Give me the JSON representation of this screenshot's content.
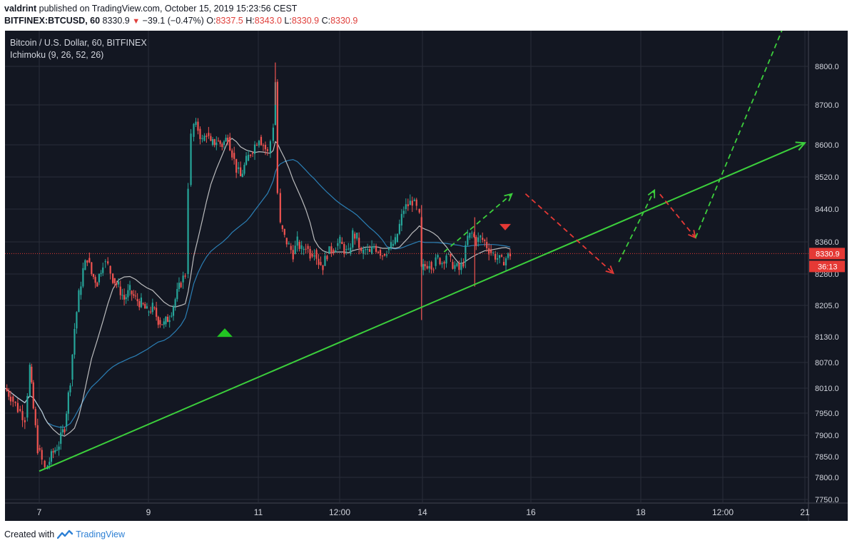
{
  "header": {
    "user": "valdrint",
    "published_text": " published on TradingView.com, October 15, 2019 15:23:56 CEST",
    "symbol": "BITFINEX:BTCUSD, 60",
    "last": "8330.9",
    "change": "−39.1 (−0.47%)",
    "open_label": "O:",
    "open": "8337.5",
    "high_label": "H:",
    "high": "8343.0",
    "low_label": "L:",
    "low": "8330.9",
    "close_label": "C:",
    "close": "8330.9"
  },
  "legend": {
    "title": "Bitcoin / U.S. Dollar, 60, BITFINEX",
    "indicator": "Ichimoku (9, 26, 52, 26)"
  },
  "footer": {
    "created_with": "Created with",
    "brand": "TradingView"
  },
  "colors": {
    "background": "#131722",
    "grid": "#2a2e39",
    "up": "#26a69a",
    "down": "#ef5350",
    "trendline": "#3ccf3c",
    "projection_up": "#3ccf3c",
    "projection_down": "#e53935",
    "price_tag": "#e53935",
    "axis_text": "#d1d4dc",
    "base_line": "#d8d8d8",
    "conv_line": "#2b7fb5"
  },
  "chart_data": {
    "type": "candlestick",
    "y_ticks": [
      7750.0,
      7800.0,
      7850.0,
      7900.0,
      7950.0,
      8010.0,
      8070.0,
      8130.0,
      8205.0,
      8280.0,
      8360.0,
      8440.0,
      8520.0,
      8600.0,
      8700.0,
      8800.0
    ],
    "x_ticks": [
      "7",
      "9",
      "11",
      "12:00",
      "14",
      "16",
      "18",
      "12:00",
      "21"
    ],
    "current_price": "8330.9",
    "countdown": "36:13",
    "price_path": [
      [
        0,
        8010
      ],
      [
        8,
        7990
      ],
      [
        18,
        7960
      ],
      [
        28,
        7940
      ],
      [
        35,
        8060
      ],
      [
        40,
        7960
      ],
      [
        46,
        7870
      ],
      [
        52,
        7840
      ],
      [
        56,
        7820
      ],
      [
        60,
        7830
      ],
      [
        68,
        7860
      ],
      [
        76,
        7880
      ],
      [
        84,
        7920
      ],
      [
        92,
        8030
      ],
      [
        98,
        8150
      ],
      [
        104,
        8230
      ],
      [
        110,
        8290
      ],
      [
        116,
        8320
      ],
      [
        122,
        8280
      ],
      [
        130,
        8260
      ],
      [
        138,
        8310
      ],
      [
        145,
        8300
      ],
      [
        152,
        8270
      ],
      [
        160,
        8250
      ],
      [
        168,
        8220
      ],
      [
        176,
        8240
      ],
      [
        184,
        8220
      ],
      [
        192,
        8210
      ],
      [
        200,
        8190
      ],
      [
        208,
        8200
      ],
      [
        216,
        8170
      ],
      [
        224,
        8160
      ],
      [
        232,
        8180
      ],
      [
        240,
        8220
      ],
      [
        248,
        8260
      ],
      [
        254,
        8280
      ],
      [
        258,
        8500
      ],
      [
        262,
        8620
      ],
      [
        266,
        8650
      ],
      [
        272,
        8640
      ],
      [
        278,
        8610
      ],
      [
        284,
        8630
      ],
      [
        290,
        8600
      ],
      [
        298,
        8610
      ],
      [
        306,
        8600
      ],
      [
        314,
        8620
      ],
      [
        320,
        8580
      ],
      [
        326,
        8540
      ],
      [
        332,
        8520
      ],
      [
        340,
        8560
      ],
      [
        346,
        8580
      ],
      [
        352,
        8600
      ],
      [
        358,
        8620
      ],
      [
        364,
        8600
      ],
      [
        370,
        8580
      ],
      [
        374,
        8610
      ],
      [
        378,
        8650
      ],
      [
        381,
        8760
      ],
      [
        384,
        8480
      ],
      [
        388,
        8400
      ],
      [
        394,
        8370
      ],
      [
        400,
        8350
      ],
      [
        406,
        8330
      ],
      [
        412,
        8360
      ],
      [
        418,
        8340
      ],
      [
        424,
        8350
      ],
      [
        430,
        8330
      ],
      [
        436,
        8340
      ],
      [
        442,
        8310
      ],
      [
        448,
        8300
      ],
      [
        454,
        8330
      ],
      [
        460,
        8340
      ],
      [
        466,
        8350
      ],
      [
        472,
        8360
      ],
      [
        478,
        8340
      ],
      [
        484,
        8330
      ],
      [
        490,
        8380
      ],
      [
        496,
        8370
      ],
      [
        502,
        8330
      ],
      [
        508,
        8340
      ],
      [
        514,
        8330
      ],
      [
        520,
        8350
      ],
      [
        526,
        8340
      ],
      [
        532,
        8330
      ],
      [
        538,
        8340
      ],
      [
        544,
        8350
      ],
      [
        550,
        8360
      ],
      [
        556,
        8400
      ],
      [
        562,
        8440
      ],
      [
        568,
        8450
      ],
      [
        574,
        8460
      ],
      [
        580,
        8440
      ],
      [
        584,
        8420
      ],
      [
        587,
        8290
      ],
      [
        592,
        8300
      ],
      [
        598,
        8310
      ],
      [
        604,
        8300
      ],
      [
        610,
        8320
      ],
      [
        616,
        8310
      ],
      [
        622,
        8330
      ],
      [
        628,
        8310
      ],
      [
        634,
        8300
      ],
      [
        640,
        8290
      ],
      [
        646,
        8310
      ],
      [
        652,
        8370
      ],
      [
        658,
        8380
      ],
      [
        664,
        8360
      ],
      [
        670,
        8370
      ],
      [
        676,
        8360
      ],
      [
        682,
        8340
      ],
      [
        688,
        8330
      ],
      [
        694,
        8320
      ],
      [
        700,
        8310
      ],
      [
        706,
        8320
      ],
      [
        712,
        8330
      ]
    ],
    "trendline": {
      "start_day": 0.0,
      "start_price": 7815.0,
      "end_day": 14.0,
      "end_price": 8605.0
    },
    "projection": {
      "up_1": [
        [
          14.4,
          8335
        ],
        [
          15.65,
          8478
        ]
      ],
      "down_1": [
        [
          15.9,
          8478
        ],
        [
          17.5,
          8282
        ]
      ],
      "up_2": [
        [
          17.6,
          8310
        ],
        [
          18.25,
          8487
        ]
      ],
      "down_2": [
        [
          18.35,
          8477
        ],
        [
          19.0,
          8370
        ]
      ],
      "up_3": [
        [
          19.0,
          8370
        ],
        [
          20.6,
          8900
        ]
      ]
    },
    "markers": [
      {
        "type": "triangle-down",
        "color": "#e53935",
        "day": 13.4,
        "price": 8395
      },
      {
        "type": "triangle-up",
        "color": "#22c422",
        "day": 4.9,
        "price": 8140
      }
    ]
  }
}
